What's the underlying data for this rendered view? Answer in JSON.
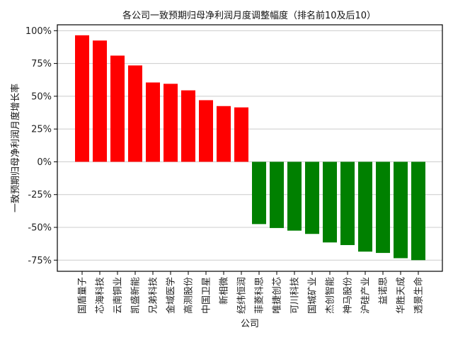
{
  "chart_data": {
    "type": "bar",
    "title": "各公司一致预期归母净利润月度调整幅度（排名前10及后10）",
    "xlabel": "公司",
    "ylabel": "一致预期归母净利润月度增长率",
    "categories": [
      "国盾量子",
      "芯海科技",
      "云南铜业",
      "凯盛新能",
      "兄弟科技",
      "金域医学",
      "高测股份",
      "中国卫星",
      "新相微",
      "经纬恒润",
      "菲菱科思",
      "唯捷创芯",
      "可川科技",
      "国城矿业",
      "杰创智能",
      "神马股份",
      "沪硅产业",
      "益诺思",
      "华胜天成",
      "透景生命"
    ],
    "values": [
      96.5,
      92.5,
      81,
      73.5,
      60.5,
      59.5,
      54.5,
      47,
      42.5,
      41.5,
      -47.5,
      -50.5,
      -52.5,
      -55,
      -61.5,
      -63.5,
      -68.5,
      -69.5,
      -73.5,
      -75
    ],
    "colors": [
      "#ff0000",
      "#ff0000",
      "#ff0000",
      "#ff0000",
      "#ff0000",
      "#ff0000",
      "#ff0000",
      "#ff0000",
      "#ff0000",
      "#ff0000",
      "#008000",
      "#008000",
      "#008000",
      "#008000",
      "#008000",
      "#008000",
      "#008000",
      "#008000",
      "#008000",
      "#008000"
    ],
    "ylim": [
      -83.5,
      104.5
    ],
    "yticks": [
      100,
      75,
      50,
      25,
      0,
      -25,
      -50,
      -75
    ],
    "ytick_labels": [
      "100%",
      "75%",
      "50%",
      "25%",
      "0%",
      "-25%",
      "-50%",
      "-75%"
    ],
    "grid": "horizontal",
    "legend": "none"
  }
}
